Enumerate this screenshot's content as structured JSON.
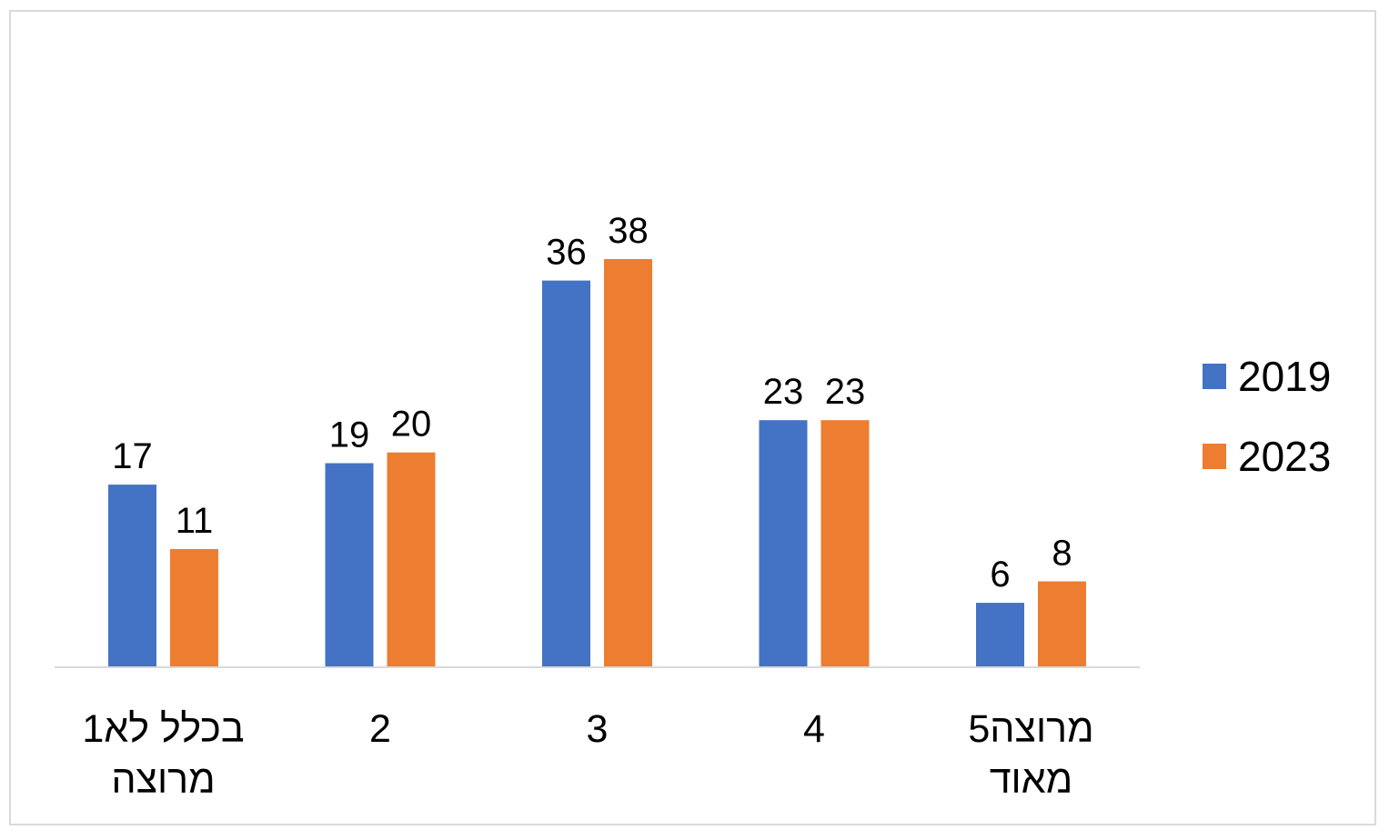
{
  "chart_data": {
    "type": "bar",
    "categories": [
      [
        "1בכלל לא",
        "מרוצה"
      ],
      [
        "2"
      ],
      [
        "3"
      ],
      [
        "4"
      ],
      [
        "5מרוצה",
        "מאוד"
      ]
    ],
    "series": [
      {
        "name": "2019",
        "color": "#4472C4",
        "values": [
          17,
          19,
          36,
          23,
          6
        ]
      },
      {
        "name": "2023",
        "color": "#ED7D31",
        "values": [
          11,
          20,
          38,
          23,
          8
        ]
      }
    ],
    "title": "",
    "xlabel": "",
    "ylabel": "",
    "ylim": [
      0,
      45
    ],
    "grid": false,
    "data_labels": true,
    "legend_position": "right"
  }
}
